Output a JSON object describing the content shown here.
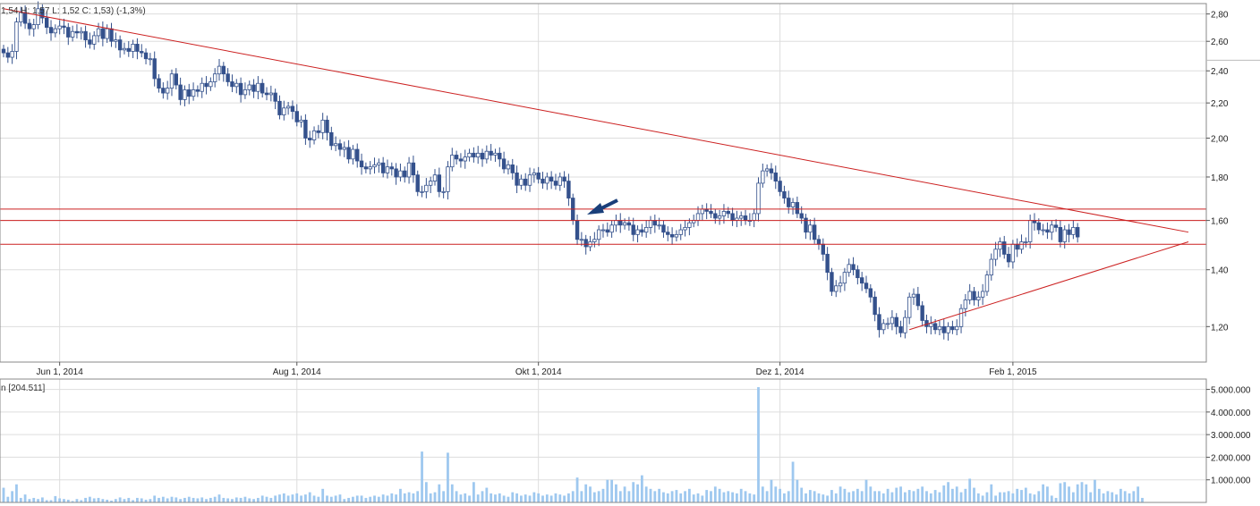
{
  "header": {
    "ohlc_text": "1,54  H: 1,57  L: 1,52  C: 1,53) (-1,3%)",
    "volume_text": "n [204.511]"
  },
  "chart_data": [
    {
      "type": "candlestick",
      "title": "",
      "x_tick_labels": [
        "Jun 1, 2014",
        "Aug 1, 2014",
        "Okt 1, 2014",
        "Dez 1, 2014",
        "Feb 1, 2015"
      ],
      "y_tick_labels": [
        "2,80",
        "2,60",
        "2,40",
        "2,20",
        "2,00",
        "1,80",
        "1,60",
        "1,40",
        "1,20"
      ],
      "y_ticks": [
        2.8,
        2.6,
        2.4,
        2.2,
        2.0,
        1.8,
        1.6,
        1.4,
        1.2
      ],
      "y_scale": "log",
      "ylim": [
        1.09,
        2.88
      ],
      "grid": true,
      "last_price": 1.53,
      "horizontal_lines": [
        1.65,
        1.6,
        1.5
      ],
      "trendlines": [
        {
          "from": [
            0,
            2.84
          ],
          "to": [
            273,
            1.55
          ]
        },
        {
          "from": [
            210,
            1.19
          ],
          "to": [
            273,
            1.51
          ]
        }
      ],
      "arrow_at_index": 140,
      "candles_close": [
        2.52,
        2.49,
        2.53,
        2.74,
        2.81,
        2.73,
        2.69,
        2.72,
        2.84,
        2.77,
        2.7,
        2.66,
        2.69,
        2.71,
        2.7,
        2.63,
        2.67,
        2.66,
        2.67,
        2.61,
        2.58,
        2.64,
        2.69,
        2.62,
        2.69,
        2.6,
        2.61,
        2.54,
        2.55,
        2.53,
        2.58,
        2.53,
        2.52,
        2.48,
        2.48,
        2.35,
        2.29,
        2.26,
        2.29,
        2.38,
        2.31,
        2.22,
        2.28,
        2.24,
        2.28,
        2.27,
        2.32,
        2.3,
        2.33,
        2.38,
        2.43,
        2.38,
        2.33,
        2.3,
        2.32,
        2.25,
        2.28,
        2.31,
        2.27,
        2.32,
        2.26,
        2.25,
        2.26,
        2.21,
        2.13,
        2.17,
        2.18,
        2.15,
        2.09,
        2.1,
        2.0,
        1.99,
        2.04,
        2.03,
        2.1,
        2.03,
        1.96,
        1.97,
        1.94,
        1.95,
        1.89,
        1.94,
        1.88,
        1.85,
        1.84,
        1.85,
        1.86,
        1.87,
        1.82,
        1.85,
        1.84,
        1.8,
        1.83,
        1.8,
        1.87,
        1.81,
        1.73,
        1.73,
        1.76,
        1.78,
        1.81,
        1.73,
        1.73,
        1.85,
        1.91,
        1.89,
        1.88,
        1.9,
        1.92,
        1.9,
        1.92,
        1.89,
        1.93,
        1.91,
        1.92,
        1.89,
        1.84,
        1.86,
        1.82,
        1.76,
        1.79,
        1.76,
        1.81,
        1.82,
        1.79,
        1.77,
        1.8,
        1.78,
        1.76,
        1.8,
        1.78,
        1.7,
        1.6,
        1.52,
        1.52,
        1.49,
        1.51,
        1.52,
        1.56,
        1.56,
        1.55,
        1.58,
        1.6,
        1.58,
        1.59,
        1.58,
        1.54,
        1.56,
        1.55,
        1.57,
        1.6,
        1.58,
        1.58,
        1.55,
        1.54,
        1.53,
        1.54,
        1.56,
        1.57,
        1.59,
        1.6,
        1.63,
        1.65,
        1.64,
        1.63,
        1.61,
        1.62,
        1.64,
        1.63,
        1.6,
        1.61,
        1.62,
        1.6,
        1.6,
        1.63,
        1.77,
        1.83,
        1.84,
        1.82,
        1.78,
        1.73,
        1.7,
        1.66,
        1.68,
        1.63,
        1.61,
        1.55,
        1.58,
        1.52,
        1.5,
        1.46,
        1.39,
        1.32,
        1.34,
        1.35,
        1.39,
        1.42,
        1.4,
        1.37,
        1.35,
        1.33,
        1.3,
        1.24,
        1.19,
        1.21,
        1.21,
        1.23,
        1.2,
        1.18,
        1.23,
        1.3,
        1.31,
        1.27,
        1.22,
        1.2,
        1.21,
        1.19,
        1.2,
        1.18,
        1.2,
        1.19,
        1.2,
        1.26,
        1.29,
        1.32,
        1.29,
        1.3,
        1.32,
        1.38,
        1.44,
        1.48,
        1.51,
        1.46,
        1.43,
        1.5,
        1.48,
        1.51,
        1.51,
        1.6,
        1.59,
        1.56,
        1.56,
        1.55,
        1.58,
        1.57,
        1.51,
        1.56,
        1.54,
        1.57,
        1.53
      ],
      "volume": {
        "y_tick_labels": [
          "5.000.000",
          "4.000.000",
          "3.000.000",
          "2.000.000",
          "1.000.000"
        ],
        "y_ticks": [
          5000000,
          4000000,
          3000000,
          2000000,
          1000000
        ],
        "ylim": [
          0,
          5300000
        ],
        "bar_color": "#9ec8ef",
        "values": [
          650000,
          250000,
          500000,
          800000,
          200000,
          350000,
          150000,
          200000,
          150000,
          220000,
          100000,
          100000,
          280000,
          180000,
          150000,
          120000,
          60000,
          150000,
          100000,
          200000,
          250000,
          180000,
          200000,
          150000,
          120000,
          80000,
          150000,
          220000,
          150000,
          200000,
          100000,
          200000,
          180000,
          120000,
          150000,
          300000,
          200000,
          250000,
          180000,
          250000,
          220000,
          150000,
          200000,
          250000,
          200000,
          180000,
          220000,
          150000,
          200000,
          250000,
          350000,
          200000,
          180000,
          150000,
          220000,
          200000,
          250000,
          180000,
          150000,
          200000,
          300000,
          250000,
          200000,
          300000,
          350000,
          400000,
          300000,
          350000,
          400000,
          300000,
          350000,
          450000,
          300000,
          250000,
          600000,
          300000,
          250000,
          300000,
          350000,
          150000,
          200000,
          250000,
          300000,
          300000,
          200000,
          250000,
          300000,
          250000,
          350000,
          300000,
          400000,
          350000,
          600000,
          400000,
          450000,
          400000,
          500000,
          2250000,
          900000,
          400000,
          450000,
          800000,
          500000,
          2200000,
          800000,
          500000,
          350000,
          400000,
          300000,
          900000,
          350000,
          500000,
          650000,
          400000,
          350000,
          400000,
          300000,
          250000,
          450000,
          400000,
          300000,
          350000,
          300000,
          450000,
          400000,
          300000,
          350000,
          300000,
          400000,
          350000,
          300000,
          400000,
          500000,
          1100000,
          500000,
          800000,
          700000,
          450000,
          500000,
          600000,
          1000000,
          1000000,
          800000,
          500000,
          700000,
          500000,
          900000,
          800000,
          1200000,
          700000,
          600000,
          500000,
          600000,
          450000,
          400000,
          500000,
          550000,
          400000,
          500000,
          600000,
          350000,
          400000,
          300000,
          550000,
          500000,
          700000,
          600000,
          450000,
          500000,
          450000,
          400000,
          600000,
          500000,
          400000,
          350000,
          5100000,
          700000,
          500000,
          1000000,
          700000,
          600000,
          400000,
          500000,
          1800000,
          1000000,
          650000,
          400000,
          550000,
          500000,
          400000,
          350000,
          300000,
          550000,
          400000,
          700000,
          600000,
          450000,
          500000,
          600000,
          500000,
          1000000,
          700000,
          500000,
          500000,
          400000,
          600000,
          450000,
          650000,
          700000,
          450000,
          550000,
          500000,
          600000,
          700000,
          500000,
          400000,
          550000,
          450000,
          750000,
          900000,
          600000,
          700000,
          450000,
          600000,
          1050000,
          650000,
          400000,
          300000,
          450000,
          800000,
          300000,
          450000,
          450000,
          500000,
          400000,
          600000,
          550000,
          650000,
          400000,
          350000,
          500000,
          800000,
          700000,
          300000,
          200000,
          850000,
          900000,
          700000,
          450000,
          800000,
          900000,
          800000,
          450000,
          1000000,
          600000,
          400000,
          500000,
          450000,
          350000,
          600000,
          500000,
          400000,
          500000,
          700000,
          200000
        ]
      }
    }
  ],
  "colors": {
    "down_candle": "#34518c",
    "up_candle_outline": "#34518c",
    "resistance_lines": "#cc2020",
    "grid": "#dddddd",
    "arrow": "#1a3f7a"
  }
}
